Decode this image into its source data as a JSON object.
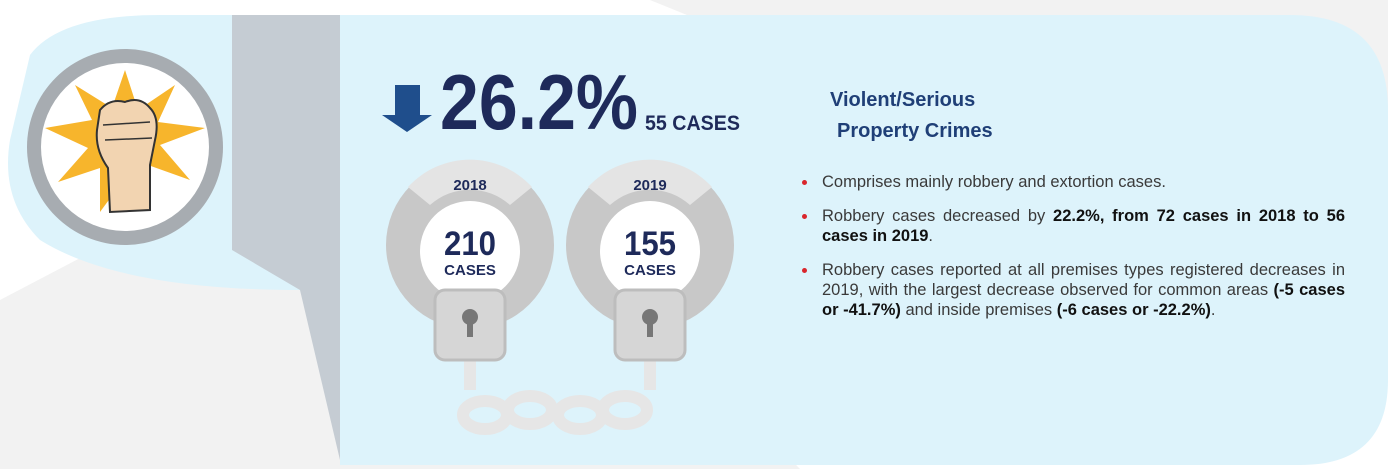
{
  "headline": {
    "change": "26.2%",
    "cases": "55 CASES"
  },
  "title_lines": [
    "Violent/Serious",
    "Property Crimes"
  ],
  "years": [
    {
      "year": "2018",
      "count": "210",
      "unit": "CASES"
    },
    {
      "year": "2019",
      "count": "155",
      "unit": "CASES"
    }
  ],
  "bullets": [
    [
      "Comprises mainly robbery and extortion cases."
    ],
    [
      "Robbery cases decreased by ",
      "22.2%, from 72 cases in 2018 to 56 cases in 2019",
      "."
    ],
    [
      "Robbery cases reported at all premises types registered decreases in 2019, with the largest decrease observed for common areas ",
      "(-5 cases or -41.7%)",
      " and inside premises ",
      "(-6 cases or -22.2%)",
      "."
    ]
  ]
}
